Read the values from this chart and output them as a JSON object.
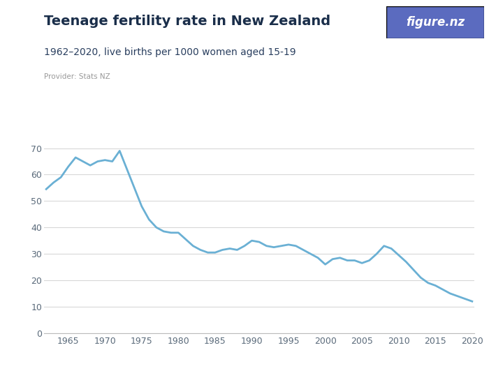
{
  "title": "Teenage fertility rate in New Zealand",
  "subtitle": "1962–2020, live births per 1000 women aged 15-19",
  "provider": "Provider: Stats NZ",
  "line_color": "#6ab0d4",
  "background_color": "#ffffff",
  "xlim": [
    1962,
    2020
  ],
  "ylim": [
    0,
    75
  ],
  "yticks": [
    0,
    10,
    20,
    30,
    40,
    50,
    60,
    70
  ],
  "xticks": [
    1965,
    1970,
    1975,
    1980,
    1985,
    1990,
    1995,
    2000,
    2005,
    2010,
    2015,
    2020
  ],
  "years": [
    1962,
    1963,
    1964,
    1965,
    1966,
    1967,
    1968,
    1969,
    1970,
    1971,
    1972,
    1973,
    1974,
    1975,
    1976,
    1977,
    1978,
    1979,
    1980,
    1981,
    1982,
    1983,
    1984,
    1985,
    1986,
    1987,
    1988,
    1989,
    1990,
    1991,
    1992,
    1993,
    1994,
    1995,
    1996,
    1997,
    1998,
    1999,
    2000,
    2001,
    2002,
    2003,
    2004,
    2005,
    2006,
    2007,
    2008,
    2009,
    2010,
    2011,
    2012,
    2013,
    2014,
    2015,
    2016,
    2017,
    2018,
    2019,
    2020
  ],
  "values": [
    54.5,
    57.0,
    59.0,
    63.0,
    66.5,
    65.0,
    63.5,
    65.0,
    65.5,
    65.0,
    69.0,
    62.0,
    55.0,
    48.0,
    43.0,
    40.0,
    38.5,
    38.0,
    38.0,
    35.5,
    33.0,
    31.5,
    30.5,
    30.5,
    31.5,
    32.0,
    31.5,
    33.0,
    35.0,
    34.5,
    33.0,
    32.5,
    33.0,
    33.5,
    33.0,
    31.5,
    30.0,
    28.5,
    26.0,
    28.0,
    28.5,
    27.5,
    27.5,
    26.5,
    27.5,
    30.0,
    33.0,
    32.0,
    29.5,
    27.0,
    24.0,
    21.0,
    19.0,
    18.0,
    16.5,
    15.0,
    14.0,
    13.0,
    12.0
  ],
  "title_color": "#1a2e4a",
  "subtitle_color": "#2a3f5f",
  "provider_color": "#999999",
  "grid_color": "#d8d8d8",
  "tick_color": "#5a6a7a",
  "logo_bg": "#5b6bbf",
  "logo_text": "figure.nz",
  "line_width": 2.0,
  "title_fontsize": 14,
  "subtitle_fontsize": 10,
  "provider_fontsize": 7.5,
  "tick_fontsize": 9
}
